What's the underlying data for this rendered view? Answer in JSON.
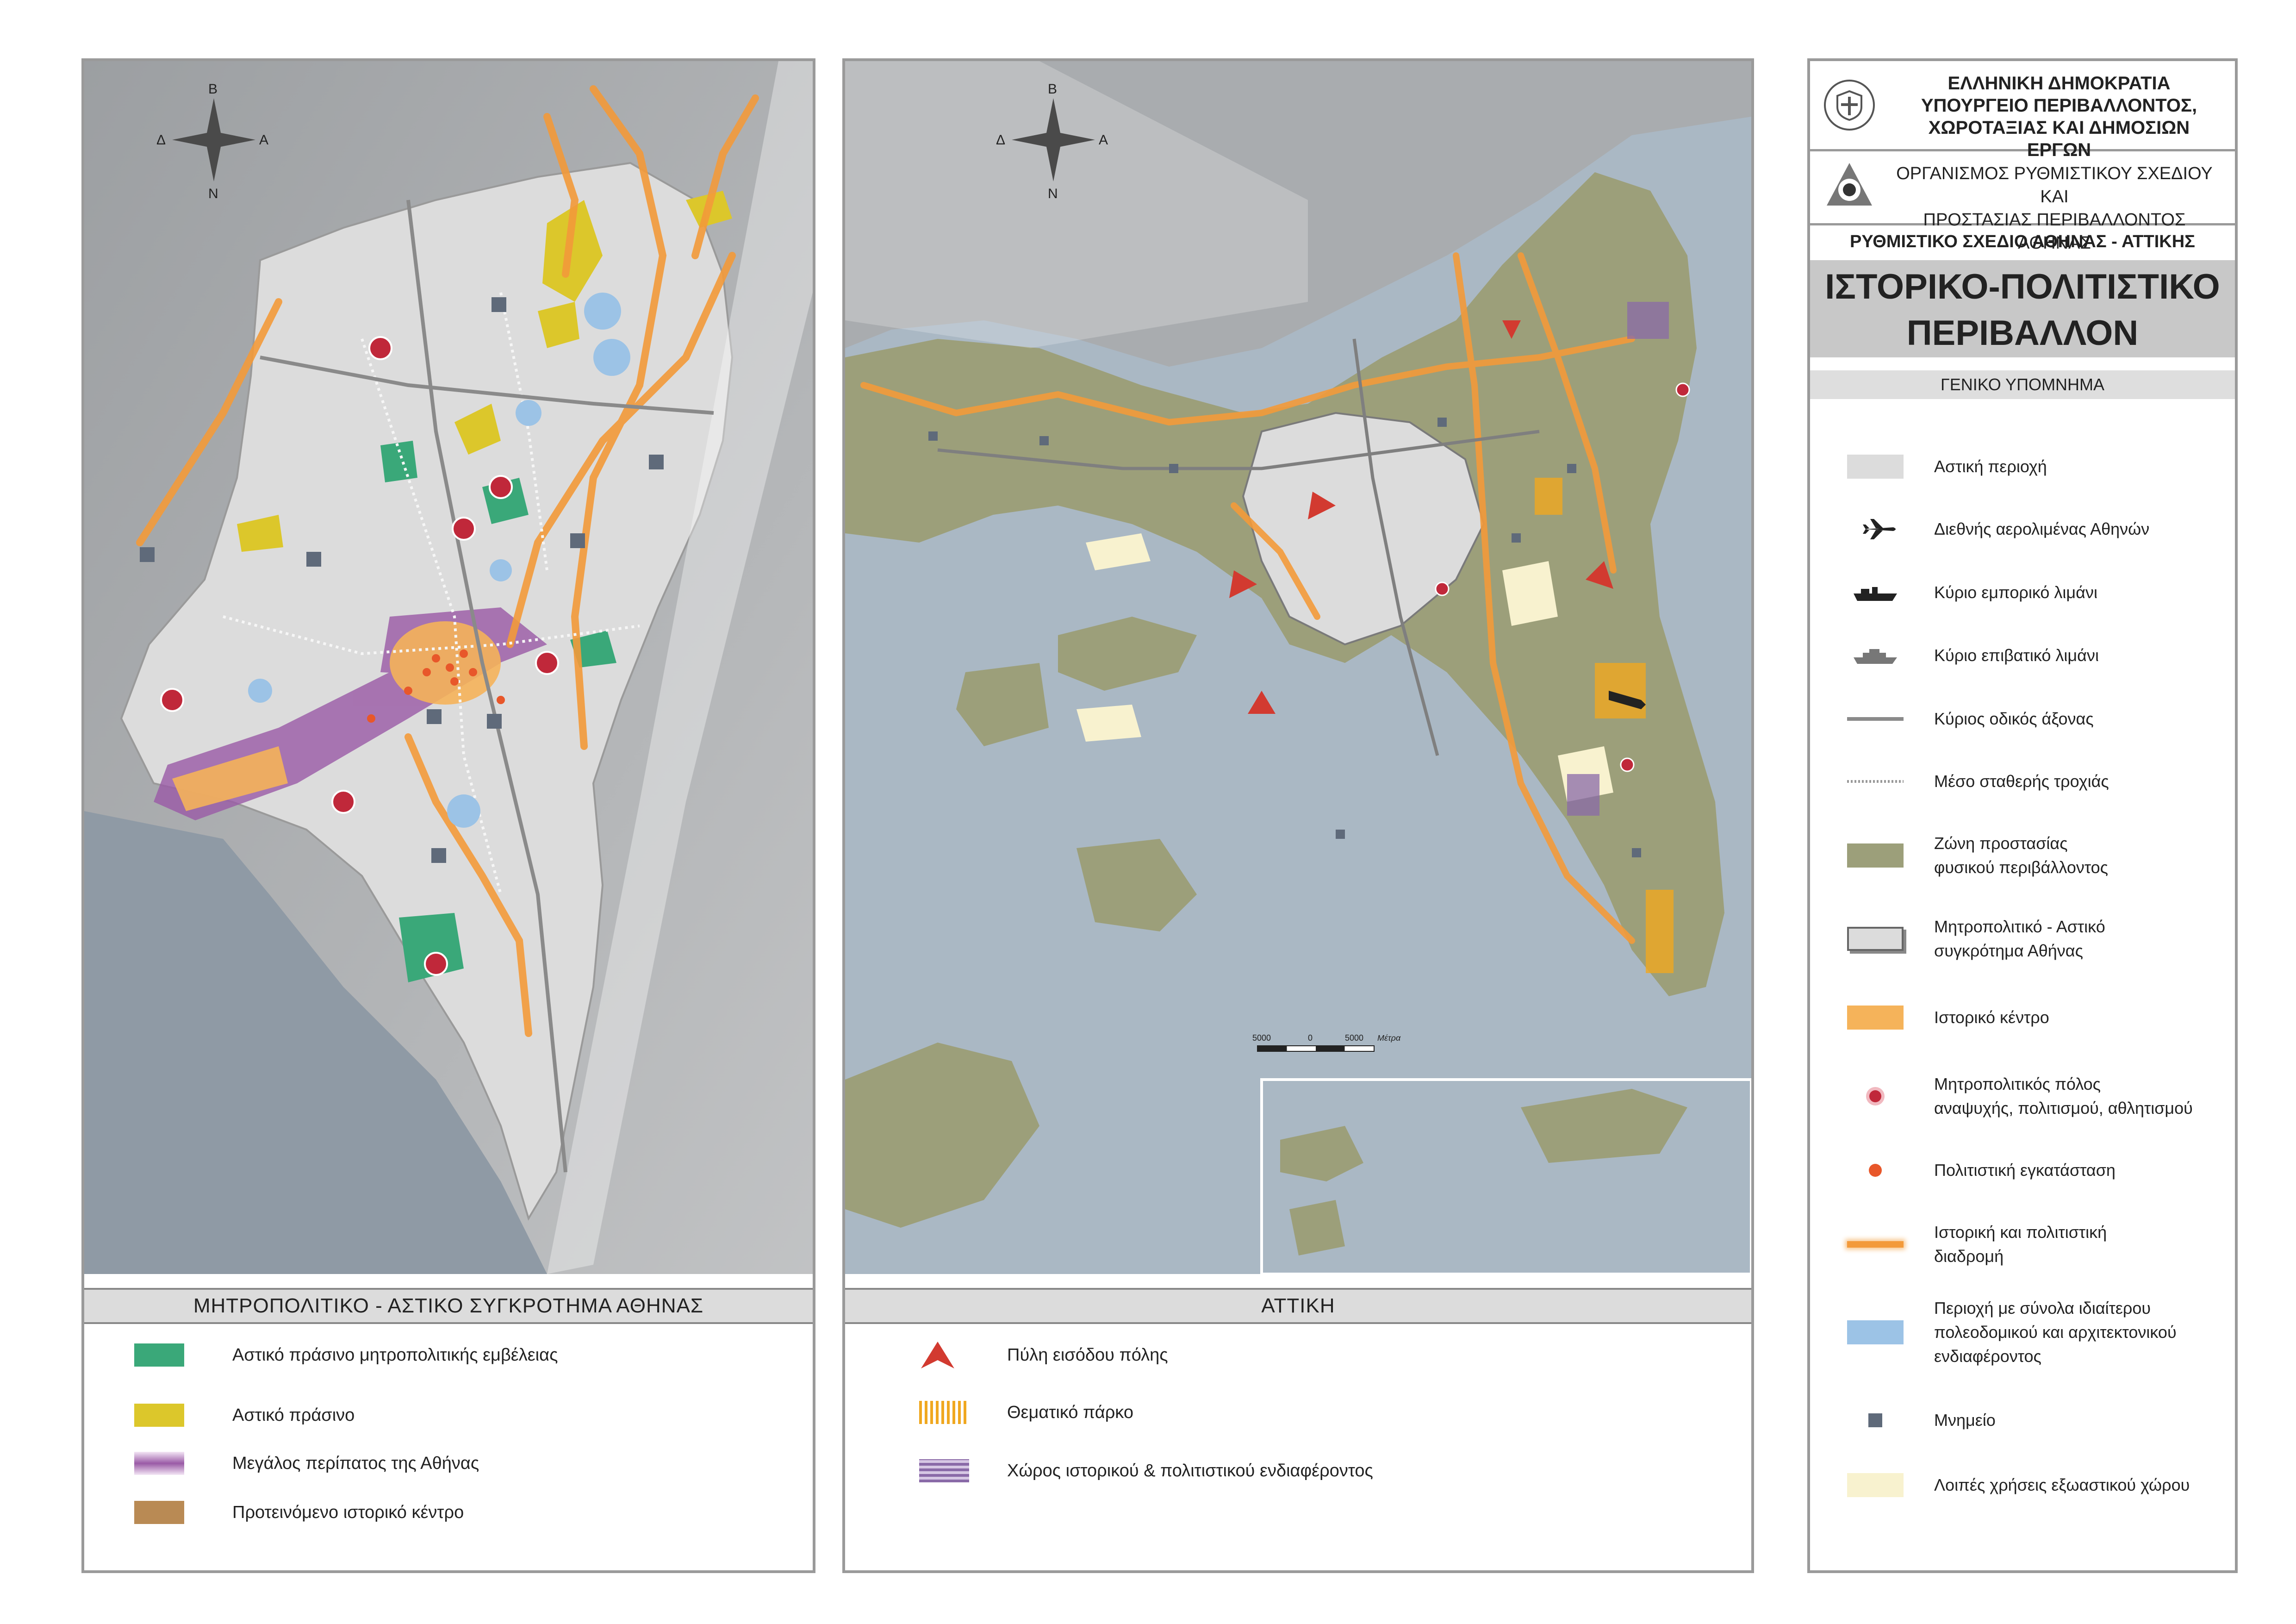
{
  "compass": {
    "north": "Β",
    "south": "Ν",
    "east": "Α",
    "west": "Δ"
  },
  "left_panel": {
    "title": "ΜΗΤΡΟΠΟΛΙΤΙΚΟ - ΑΣΤΙΚΟ ΣΥΓΚΡΟΤΗΜΑ ΑΘΗΝΑΣ",
    "legend": [
      {
        "label": "Αστικό πράσινο μητροπολιτικής εμβέλειας",
        "color": "#3aa879"
      },
      {
        "label": "Αστικό πράσινο",
        "color": "#dcc72b"
      },
      {
        "label": "Μεγάλος περίπατος της Αθήνας",
        "color": "#9a5aa6"
      },
      {
        "label": "Προτεινόμενο ιστορικό κέντρο",
        "color": "#b98a54"
      }
    ]
  },
  "middle_panel": {
    "title": "ΑΤΤΙΚΗ",
    "legend": [
      {
        "label": "Πύλη εισόδου πόλης",
        "color": "#d23a30"
      },
      {
        "label": "Θεματικό πάρκο",
        "color": "#f0a820"
      },
      {
        "label": "Χώρος ιστορικού & πολιτιστικού ενδιαφέροντος",
        "color": "#8a6aa8"
      }
    ],
    "scale": {
      "ticks": [
        "5000",
        "0",
        "5000"
      ],
      "unit": "Μέτρα"
    }
  },
  "right_panel": {
    "ministry_lines": [
      "ΕΛΛΗΝΙΚΗ ΔΗΜΟΚΡΑΤΙΑ",
      "ΥΠΟΥΡΓΕΙΟ ΠΕΡΙΒΑΛΛΟΝΤΟΣ,",
      "ΧΩΡΟΤΑΞΙΑΣ ΚΑΙ ΔΗΜΟΣΙΩΝ ΕΡΓΩΝ"
    ],
    "organization_lines": [
      "ΟΡΓΑΝΙΣΜΟΣ ΡΥΘΜΙΣΤΙΚΟΥ ΣΧΕΔΙΟΥ ΚΑΙ",
      "ΠΡΟΣΤΑΣΙΑΣ ΠΕΡΙΒΑΛΛΟΝΤΟΣ ΑΘΗΝΑΣ"
    ],
    "plan_title": "ΡΥΘΜΙΣΤΙΚΟ ΣΧΕΔΙΟ ΑΘΗΝΑΣ - ΑΤΤΙΚΗΣ",
    "map_title_lines": [
      "ΙΣΤΟΡΙΚΟ-ΠΟΛΙΤΙΣΤΙΚΟ",
      "ΠΕΡΙΒΑΛΛΟΝ"
    ],
    "legend_title": "ΓΕΝΙΚΟ ΥΠΟΜΝΗΜΑ",
    "legend": [
      {
        "lines": [
          "Αστική περιοχή"
        ],
        "icon": "urban-area-swatch"
      },
      {
        "lines": [
          "Διεθνής αερολιμένας Αθηνών"
        ],
        "icon": "airplane-icon"
      },
      {
        "lines": [
          "Κύριο εμπορικό λιμάνι"
        ],
        "icon": "cargo-ship-icon"
      },
      {
        "lines": [
          "Κύριο επιβατικό λιμάνι"
        ],
        "icon": "passenger-ship-icon"
      },
      {
        "lines": [
          "Κύριος οδικός άξονας"
        ],
        "icon": "road-line"
      },
      {
        "lines": [
          "Μέσο σταθερής τροχιάς"
        ],
        "icon": "rail-dotted-line"
      },
      {
        "lines": [
          "Ζώνη προστασίας",
          "φυσικού περιβάλλοντος"
        ],
        "icon": "protection-zone-swatch"
      },
      {
        "lines": [
          "Μητροπολιτικό - Αστικό",
          "συγκρότημα Αθήνας"
        ],
        "icon": "metro-complex-swatch"
      },
      {
        "lines": [
          "Ιστορικό κέντρο"
        ],
        "icon": "historic-center-swatch"
      },
      {
        "lines": [
          "Μητροπολιτικός πόλος",
          "αναψυχής, πολιτισμού, αθλητισμού"
        ],
        "icon": "metropolitan-pole-icon"
      },
      {
        "lines": [
          "Πολιτιστική εγκατάσταση"
        ],
        "icon": "cultural-facility-dot"
      },
      {
        "lines": [
          "Ιστορική και πολιτιστική",
          "διαδρομή"
        ],
        "icon": "cultural-route-line"
      },
      {
        "lines": [
          "Περιοχή με σύνολα ιδιαίτερου",
          "πολεοδομικού και αρχιτεκτονικού",
          "ενδιαφέροντος"
        ],
        "icon": "architectural-area-swatch"
      },
      {
        "lines": [
          "Μνημείο"
        ],
        "icon": "monument-square"
      },
      {
        "lines": [
          "Λοιπές χρήσεις εξωαστικού χώρου"
        ],
        "icon": "other-uses-swatch"
      }
    ]
  },
  "colors": {
    "sea": "#aab8c4",
    "land_grey": "#a9acaf",
    "urban": "#dcdcdc",
    "protection_green": "#9c9f7a",
    "historic_orange": "#f5b35a",
    "route_orange": "#f39a3a",
    "monument": "#5f6a7a",
    "architectural_blue": "#9cc3e6",
    "other_uses": "#f8f2cf",
    "pole_red": "#c0283a",
    "facility_dot": "#e8572a",
    "gate_red": "#d23a30"
  }
}
